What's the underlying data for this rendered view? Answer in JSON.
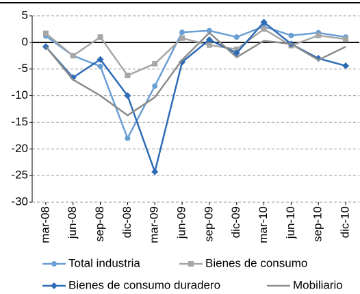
{
  "chart_data": {
    "type": "line",
    "categories": [
      "mar-08",
      "jun-08",
      "sep-08",
      "dic-08",
      "mar-09",
      "jun-09",
      "sep-09",
      "dic-09",
      "mar-10",
      "jun-10",
      "sep-10",
      "dic-10"
    ],
    "series": [
      {
        "name": "Total industria",
        "color": "#6a9fd4",
        "marker": "circle",
        "values": [
          1.2,
          -2.5,
          -4.5,
          -18.0,
          -8.2,
          1.9,
          2.2,
          1.0,
          3.0,
          1.3,
          1.8,
          1.0
        ]
      },
      {
        "name": "Bienes de consumo",
        "color": "#a6a6a6",
        "marker": "square",
        "values": [
          1.7,
          -2.5,
          1.0,
          -6.2,
          -4.0,
          0.8,
          -0.5,
          -1.3,
          2.5,
          -0.6,
          1.3,
          0.6
        ]
      },
      {
        "name": "Bienes de consumo duradero",
        "color": "#2e6bb5",
        "marker": "diamond",
        "values": [
          -0.8,
          -6.6,
          -3.2,
          -10.0,
          -24.3,
          -3.7,
          0.5,
          -2.0,
          3.8,
          -0.3,
          -3.0,
          -4.4
        ]
      },
      {
        "name": "Mobiliario",
        "color": "#8c8c8c",
        "marker": "none",
        "values": [
          -0.8,
          -7.0,
          -10.0,
          -13.7,
          -10.3,
          -3.3,
          1.8,
          -2.8,
          0.3,
          -0.3,
          -3.3,
          -0.8
        ]
      }
    ],
    "ylim": [
      -30,
      5
    ],
    "yticks": [
      -30,
      -25,
      -20,
      -15,
      -10,
      -5,
      0,
      5
    ],
    "grid": true,
    "legend": "bottom"
  }
}
